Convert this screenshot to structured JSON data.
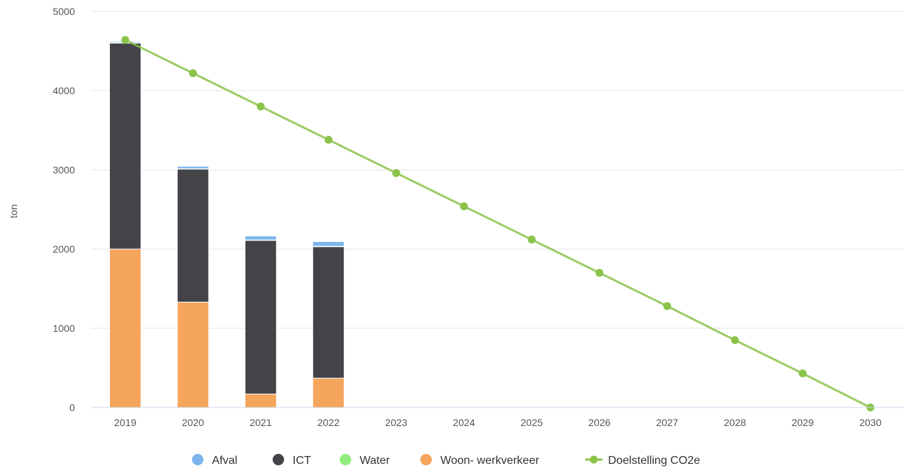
{
  "chart_data": {
    "type": "bar",
    "stacked": true,
    "ylabel": "ton",
    "xlabel": "",
    "ylim": [
      0,
      5000
    ],
    "yticks": [
      0,
      1000,
      2000,
      3000,
      4000,
      5000
    ],
    "categories": [
      "2019",
      "2020",
      "2021",
      "2022",
      "2023",
      "2024",
      "2025",
      "2026",
      "2027",
      "2028",
      "2029",
      "2030"
    ],
    "series": [
      {
        "name": "Woon- werkverkeer",
        "kind": "bar",
        "color": "#f5a55c",
        "values": [
          2000,
          1330,
          170,
          370,
          null,
          null,
          null,
          null,
          null,
          null,
          null,
          null
        ]
      },
      {
        "name": "ICT",
        "kind": "bar",
        "color": "#434348",
        "values": [
          2600,
          1680,
          1940,
          1660,
          null,
          null,
          null,
          null,
          null,
          null,
          null,
          null
        ]
      },
      {
        "name": "Water",
        "kind": "bar",
        "color": "#90ed7d",
        "values": [
          5,
          5,
          5,
          5,
          null,
          null,
          null,
          null,
          null,
          null,
          null,
          null
        ]
      },
      {
        "name": "Afval",
        "kind": "bar",
        "color": "#7cb5ec",
        "values": [
          15,
          30,
          50,
          60,
          null,
          null,
          null,
          null,
          null,
          null,
          null,
          null
        ]
      },
      {
        "name": "Doelstelling CO2e",
        "kind": "line",
        "color": "#8bc34a",
        "values": [
          4640,
          4220,
          3800,
          3380,
          2960,
          2540,
          2120,
          1700,
          1280,
          850,
          430,
          0
        ]
      }
    ],
    "legend": {
      "position": "bottom",
      "order": [
        "Afval",
        "ICT",
        "Water",
        "Woon- werkverkeer",
        "Doelstelling CO2e"
      ]
    }
  }
}
